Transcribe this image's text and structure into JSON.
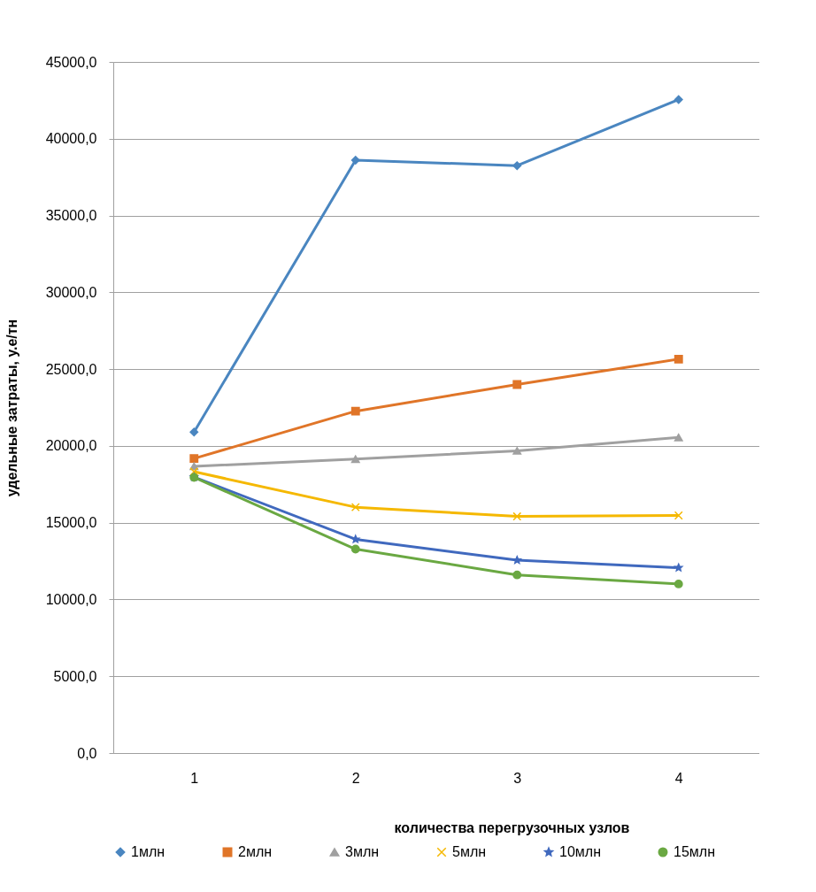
{
  "chart_data": {
    "type": "line",
    "xlabel": "количества перегрузочных узлов",
    "ylabel": "удельные затраты, у.е/тн",
    "categories": [
      "1",
      "2",
      "3",
      "4"
    ],
    "series": [
      {
        "name": "1млн",
        "color": "#4a86c0",
        "marker": "diamond",
        "values": [
          20900,
          38600,
          38250,
          42550
        ]
      },
      {
        "name": "2млн",
        "color": "#e07528",
        "marker": "square",
        "values": [
          19180,
          22260,
          24000,
          25650
        ]
      },
      {
        "name": "3млн",
        "color": "#a0a0a0",
        "marker": "triangle",
        "values": [
          18670,
          19140,
          19680,
          20550
        ]
      },
      {
        "name": "5млн",
        "color": "#f5b800",
        "marker": "cross",
        "values": [
          18320,
          16010,
          15410,
          15470
        ]
      },
      {
        "name": "10млн",
        "color": "#4069be",
        "marker": "star",
        "values": [
          17970,
          13920,
          12560,
          12070
        ]
      },
      {
        "name": "15млн",
        "color": "#6aa842",
        "marker": "circle",
        "values": [
          17950,
          13280,
          11600,
          11010
        ]
      }
    ],
    "ylim": [
      0,
      45000
    ],
    "yticks": [
      {
        "value": 0,
        "label": "0,0"
      },
      {
        "value": 5000,
        "label": "5000,0"
      },
      {
        "value": 10000,
        "label": "10000,0"
      },
      {
        "value": 15000,
        "label": "15000,0"
      },
      {
        "value": 20000,
        "label": "20000,0"
      },
      {
        "value": 25000,
        "label": "25000,0"
      },
      {
        "value": 30000,
        "label": "30000,0"
      },
      {
        "value": 35000,
        "label": "35000,0"
      },
      {
        "value": 40000,
        "label": "40000,0"
      },
      {
        "value": 45000,
        "label": "45000,0"
      }
    ],
    "grid": "y",
    "legend": "bottom",
    "line_style": "solid"
  }
}
